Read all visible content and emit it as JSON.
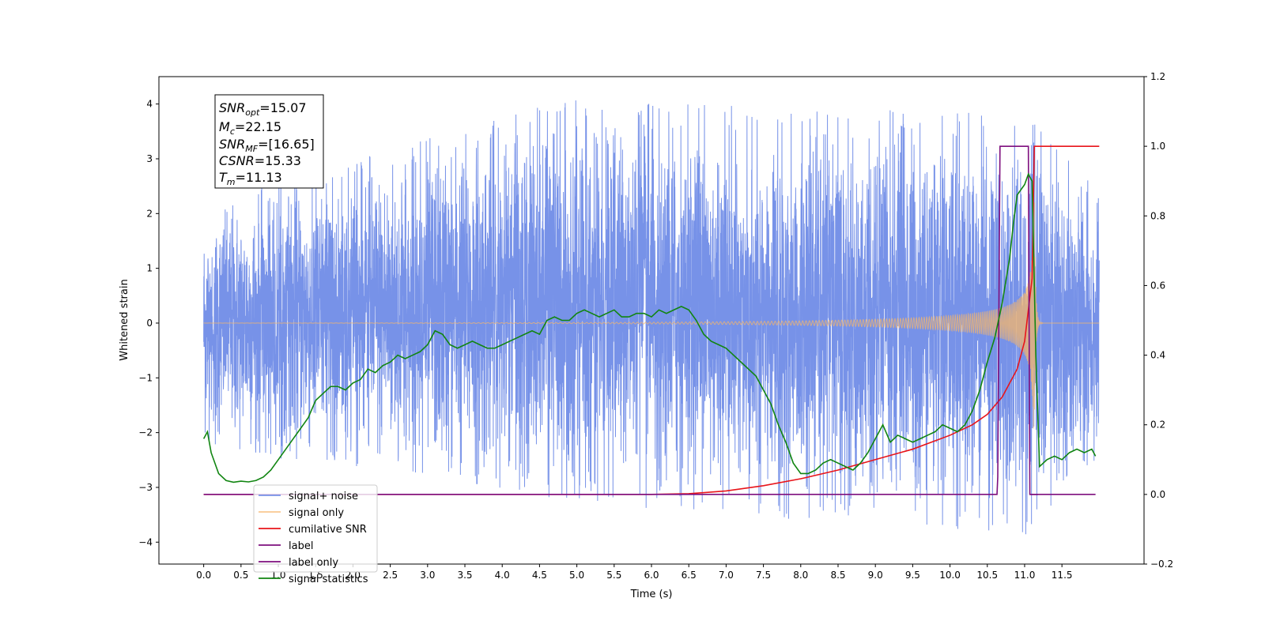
{
  "chart_data": {
    "type": "line",
    "xlabel": "Time (s)",
    "ylabel": "Whitened strain",
    "xlim": [
      -0.6,
      12.6
    ],
    "ylim": [
      -4.4,
      4.5
    ],
    "y2lim": [
      -0.2,
      1.2
    ],
    "grid": false,
    "legend_position": "lower-left",
    "x_ticks": [
      "0.0",
      "0.5",
      "1.0",
      "1.5",
      "2.0",
      "2.5",
      "3.0",
      "3.5",
      "4.0",
      "4.5",
      "5.0",
      "5.5",
      "6.0",
      "6.5",
      "7.0",
      "7.5",
      "8.0",
      "8.5",
      "9.0",
      "9.5",
      "10.0",
      "10.5",
      "11.0",
      "11.5"
    ],
    "y_ticks": [
      "−4",
      "−3",
      "−2",
      "−1",
      "0",
      "1",
      "2",
      "3",
      "4"
    ],
    "y2_ticks": [
      "−0.2",
      "0.0",
      "0.2",
      "0.4",
      "0.6",
      "0.8",
      "1.0",
      "1.2"
    ],
    "annotation": {
      "snr_opt": {
        "base": "SNR",
        "sub": "opt",
        "value": "=15.07"
      },
      "mc": {
        "base": "M",
        "sub": "c",
        "value": "=22.15"
      },
      "snr_mf": {
        "base": "SNR",
        "sub": "MF",
        "value": "=[16.65]"
      },
      "csnr": {
        "base": "CSNR",
        "value": "=15.33"
      },
      "tm": {
        "base": "T",
        "sub": "m",
        "value": "=11.13"
      }
    },
    "series": [
      {
        "name": "signal+ noise",
        "color": "#6b89e6",
        "axis": "left",
        "kind": "noise",
        "x_range": [
          0.0,
          12.0
        ],
        "envelope_upper": [
          [
            0.0,
            2.2
          ],
          [
            4.8,
            4.1
          ],
          [
            11.1,
            3.8
          ],
          [
            12.0,
            2.4
          ]
        ],
        "envelope_lower": [
          [
            0.0,
            -2.3
          ],
          [
            6.3,
            -3.5
          ],
          [
            10.6,
            -3.8
          ],
          [
            11.1,
            -3.9
          ],
          [
            12.0,
            -2.5
          ]
        ]
      },
      {
        "name": "signal only",
        "color": "#f5b66b",
        "axis": "left",
        "kind": "chirp",
        "x_range": [
          0.0,
          12.0
        ],
        "merger_time": 11.13,
        "peak_amplitude": 2.2
      },
      {
        "name": "cumilative SNR",
        "color": "#e8141a",
        "axis": "right",
        "x": [
          0.0,
          6.0,
          6.5,
          7.0,
          7.5,
          8.0,
          8.5,
          9.0,
          9.5,
          10.0,
          10.3,
          10.5,
          10.7,
          10.9,
          11.0,
          11.1,
          11.13,
          11.15,
          12.0
        ],
        "y": [
          0.0,
          0.0,
          0.002,
          0.01,
          0.025,
          0.045,
          0.07,
          0.1,
          0.13,
          0.17,
          0.2,
          0.23,
          0.28,
          0.36,
          0.44,
          0.62,
          1.0,
          1.0,
          1.0
        ]
      },
      {
        "name": "label",
        "color": "#7e0f7e",
        "axis": "right",
        "x": [
          0.0,
          10.63,
          10.64,
          10.67,
          11.05,
          11.07,
          11.17,
          11.18,
          11.95
        ],
        "y": [
          0.0,
          0.0,
          0.05,
          1.0,
          1.0,
          0.0,
          0.0,
          0.0,
          0.0
        ]
      },
      {
        "name": "label only",
        "color": "#7e0f7e",
        "axis": "right",
        "x": [
          11.08,
          11.18
        ],
        "y": [
          0.0,
          0.0
        ]
      },
      {
        "name": "signal statistics",
        "color": "#118511",
        "axis": "right",
        "x": [
          0.0,
          0.05,
          0.1,
          0.2,
          0.3,
          0.4,
          0.5,
          0.6,
          0.7,
          0.8,
          0.9,
          1.0,
          1.1,
          1.2,
          1.3,
          1.4,
          1.5,
          1.6,
          1.7,
          1.8,
          1.9,
          2.0,
          2.1,
          2.2,
          2.3,
          2.4,
          2.5,
          2.6,
          2.7,
          2.8,
          2.9,
          3.0,
          3.1,
          3.2,
          3.3,
          3.4,
          3.5,
          3.6,
          3.7,
          3.8,
          3.9,
          4.0,
          4.1,
          4.2,
          4.3,
          4.4,
          4.5,
          4.6,
          4.7,
          4.8,
          4.9,
          5.0,
          5.1,
          5.2,
          5.3,
          5.4,
          5.5,
          5.6,
          5.7,
          5.8,
          5.9,
          6.0,
          6.1,
          6.2,
          6.3,
          6.4,
          6.5,
          6.6,
          6.7,
          6.8,
          6.9,
          7.0,
          7.1,
          7.2,
          7.3,
          7.4,
          7.5,
          7.6,
          7.7,
          7.8,
          7.9,
          8.0,
          8.1,
          8.2,
          8.3,
          8.4,
          8.5,
          8.6,
          8.7,
          8.8,
          8.9,
          9.0,
          9.1,
          9.2,
          9.3,
          9.4,
          9.5,
          9.6,
          9.7,
          9.8,
          9.9,
          10.0,
          10.1,
          10.2,
          10.3,
          10.4,
          10.5,
          10.6,
          10.7,
          10.8,
          10.85,
          10.9,
          11.0,
          11.05,
          11.1,
          11.15,
          11.2,
          11.3,
          11.4,
          11.5,
          11.6,
          11.7,
          11.8,
          11.9,
          11.95
        ],
        "y": [
          0.16,
          0.18,
          0.12,
          0.06,
          0.04,
          0.035,
          0.038,
          0.036,
          0.04,
          0.05,
          0.07,
          0.1,
          0.13,
          0.16,
          0.19,
          0.22,
          0.27,
          0.29,
          0.31,
          0.31,
          0.3,
          0.32,
          0.33,
          0.36,
          0.35,
          0.37,
          0.38,
          0.4,
          0.39,
          0.4,
          0.41,
          0.43,
          0.47,
          0.46,
          0.43,
          0.42,
          0.43,
          0.44,
          0.43,
          0.42,
          0.42,
          0.43,
          0.44,
          0.45,
          0.46,
          0.47,
          0.46,
          0.5,
          0.51,
          0.5,
          0.5,
          0.52,
          0.53,
          0.52,
          0.51,
          0.52,
          0.53,
          0.51,
          0.51,
          0.52,
          0.52,
          0.51,
          0.53,
          0.52,
          0.53,
          0.54,
          0.53,
          0.5,
          0.46,
          0.44,
          0.43,
          0.42,
          0.4,
          0.38,
          0.36,
          0.34,
          0.3,
          0.26,
          0.2,
          0.15,
          0.09,
          0.06,
          0.06,
          0.07,
          0.09,
          0.1,
          0.09,
          0.08,
          0.07,
          0.09,
          0.12,
          0.16,
          0.2,
          0.15,
          0.17,
          0.16,
          0.15,
          0.16,
          0.17,
          0.18,
          0.2,
          0.19,
          0.18,
          0.2,
          0.24,
          0.3,
          0.38,
          0.45,
          0.55,
          0.68,
          0.78,
          0.86,
          0.89,
          0.92,
          0.9,
          0.4,
          0.08,
          0.1,
          0.11,
          0.1,
          0.12,
          0.13,
          0.12,
          0.13,
          0.11
        ]
      }
    ]
  }
}
